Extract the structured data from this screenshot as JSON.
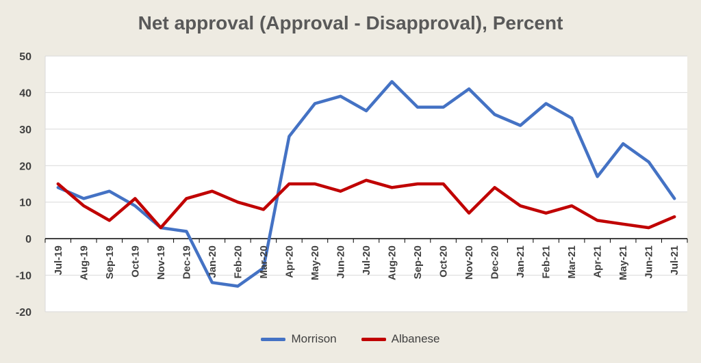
{
  "chart_data": {
    "type": "line",
    "title": "Net approval (Approval - Disapproval), Percent",
    "xlabel": "",
    "ylabel": "",
    "ylim": [
      -20,
      50
    ],
    "yticks": [
      -20,
      -10,
      0,
      10,
      20,
      30,
      40,
      50
    ],
    "grid": true,
    "legend": "bottom",
    "categories": [
      "Jul-19",
      "Aug-19",
      "Sep-19",
      "Oct-19",
      "Nov-19",
      "Dec-19",
      "Jan-20",
      "Feb-20",
      "Mar-20",
      "Apr-20",
      "May-20",
      "Jun-20",
      "Jul-20",
      "Aug-20",
      "Sep-20",
      "Oct-20",
      "Nov-20",
      "Dec-20",
      "Jan-21",
      "Feb-21",
      "Mar-21",
      "Apr-21",
      "May-21",
      "Jun-21",
      "Jul-21"
    ],
    "series": [
      {
        "name": "Morrison",
        "color": "#4472c4",
        "values": [
          14,
          11,
          13,
          9,
          3,
          2,
          -12,
          -13,
          -8,
          28,
          37,
          39,
          35,
          43,
          36,
          36,
          41,
          34,
          31,
          37,
          33,
          17,
          26,
          21,
          11
        ]
      },
      {
        "name": "Albanese",
        "color": "#c00000",
        "values": [
          15,
          9,
          5,
          11,
          3,
          11,
          13,
          10,
          8,
          15,
          15,
          13,
          16,
          14,
          15,
          15,
          7,
          14,
          9,
          7,
          9,
          5,
          4,
          3,
          6
        ]
      }
    ]
  }
}
